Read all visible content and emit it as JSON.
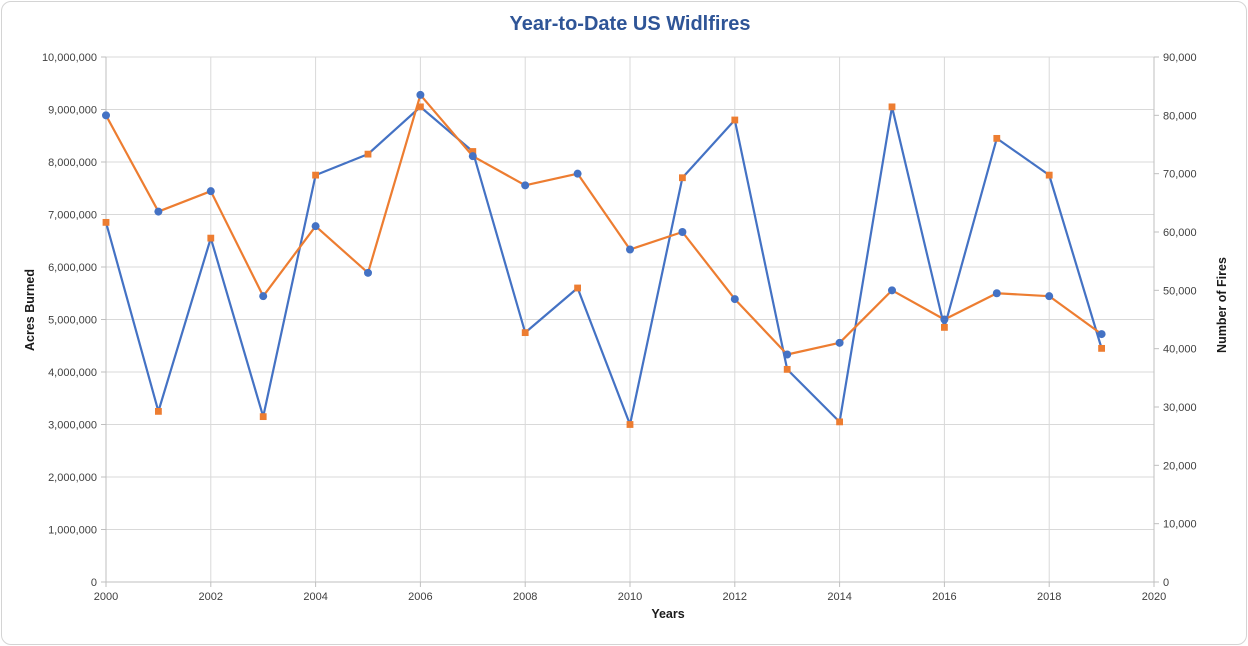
{
  "chart": {
    "title": "Year-to-Date US Widlfires",
    "title_color": "#2F5597",
    "left_axis_title": "Acres Burned",
    "right_axis_title": "Number of Fires",
    "x_axis_title": "Years"
  },
  "chart_data": {
    "type": "line",
    "title": "Year-to-Date US Widlfires",
    "xlabel": "Years",
    "ylabel_left": "Acres Burned",
    "ylabel_right": "Number of Fires",
    "legend": "none",
    "grid": "both",
    "x": [
      2000,
      2001,
      2002,
      2003,
      2004,
      2005,
      2006,
      2007,
      2008,
      2009,
      2010,
      2011,
      2012,
      2013,
      2014,
      2015,
      2016,
      2017,
      2018,
      2019
    ],
    "x_range": [
      2000,
      2020
    ],
    "x_tick_labels": [
      "2000",
      "2002",
      "2004",
      "2006",
      "2008",
      "2010",
      "2012",
      "2014",
      "2016",
      "2018",
      "2020"
    ],
    "y_left_range": [
      0,
      10000000
    ],
    "y_left_tick_labels": [
      "0",
      "1,000,000",
      "2,000,000",
      "3,000,000",
      "4,000,000",
      "5,000,000",
      "6,000,000",
      "7,000,000",
      "8,000,000",
      "9,000,000",
      "10,000,000"
    ],
    "y_right_range": [
      0,
      90000
    ],
    "y_right_tick_labels": [
      "0",
      "10,000",
      "20,000",
      "30,000",
      "40,000",
      "50,000",
      "60,000",
      "70,000",
      "80,000",
      "90,000"
    ],
    "series": [
      {
        "name": "Acres Burned",
        "axis": "left",
        "line_color": "#4472C4",
        "marker": "square",
        "marker_color": "#ED7D31",
        "values": [
          6850000,
          3250000,
          6550000,
          3150000,
          7750000,
          8150000,
          9050000,
          8200000,
          4750000,
          5600000,
          3000000,
          7700000,
          8800000,
          4050000,
          3050000,
          9050000,
          4850000,
          8450000,
          7750000,
          4450000
        ]
      },
      {
        "name": "Number of Fires",
        "axis": "right",
        "line_color": "#ED7D31",
        "marker": "circle",
        "marker_color": "#4472C4",
        "values": [
          80000,
          63500,
          67000,
          49000,
          61000,
          53000,
          83500,
          73000,
          68000,
          70000,
          57000,
          60000,
          48500,
          39000,
          41000,
          50000,
          45000,
          49500,
          49000,
          42500
        ]
      }
    ],
    "colors": {
      "gridline": "#D9D9D9",
      "axis_line": "#BFBFBF",
      "tick_label": "#404040"
    }
  }
}
